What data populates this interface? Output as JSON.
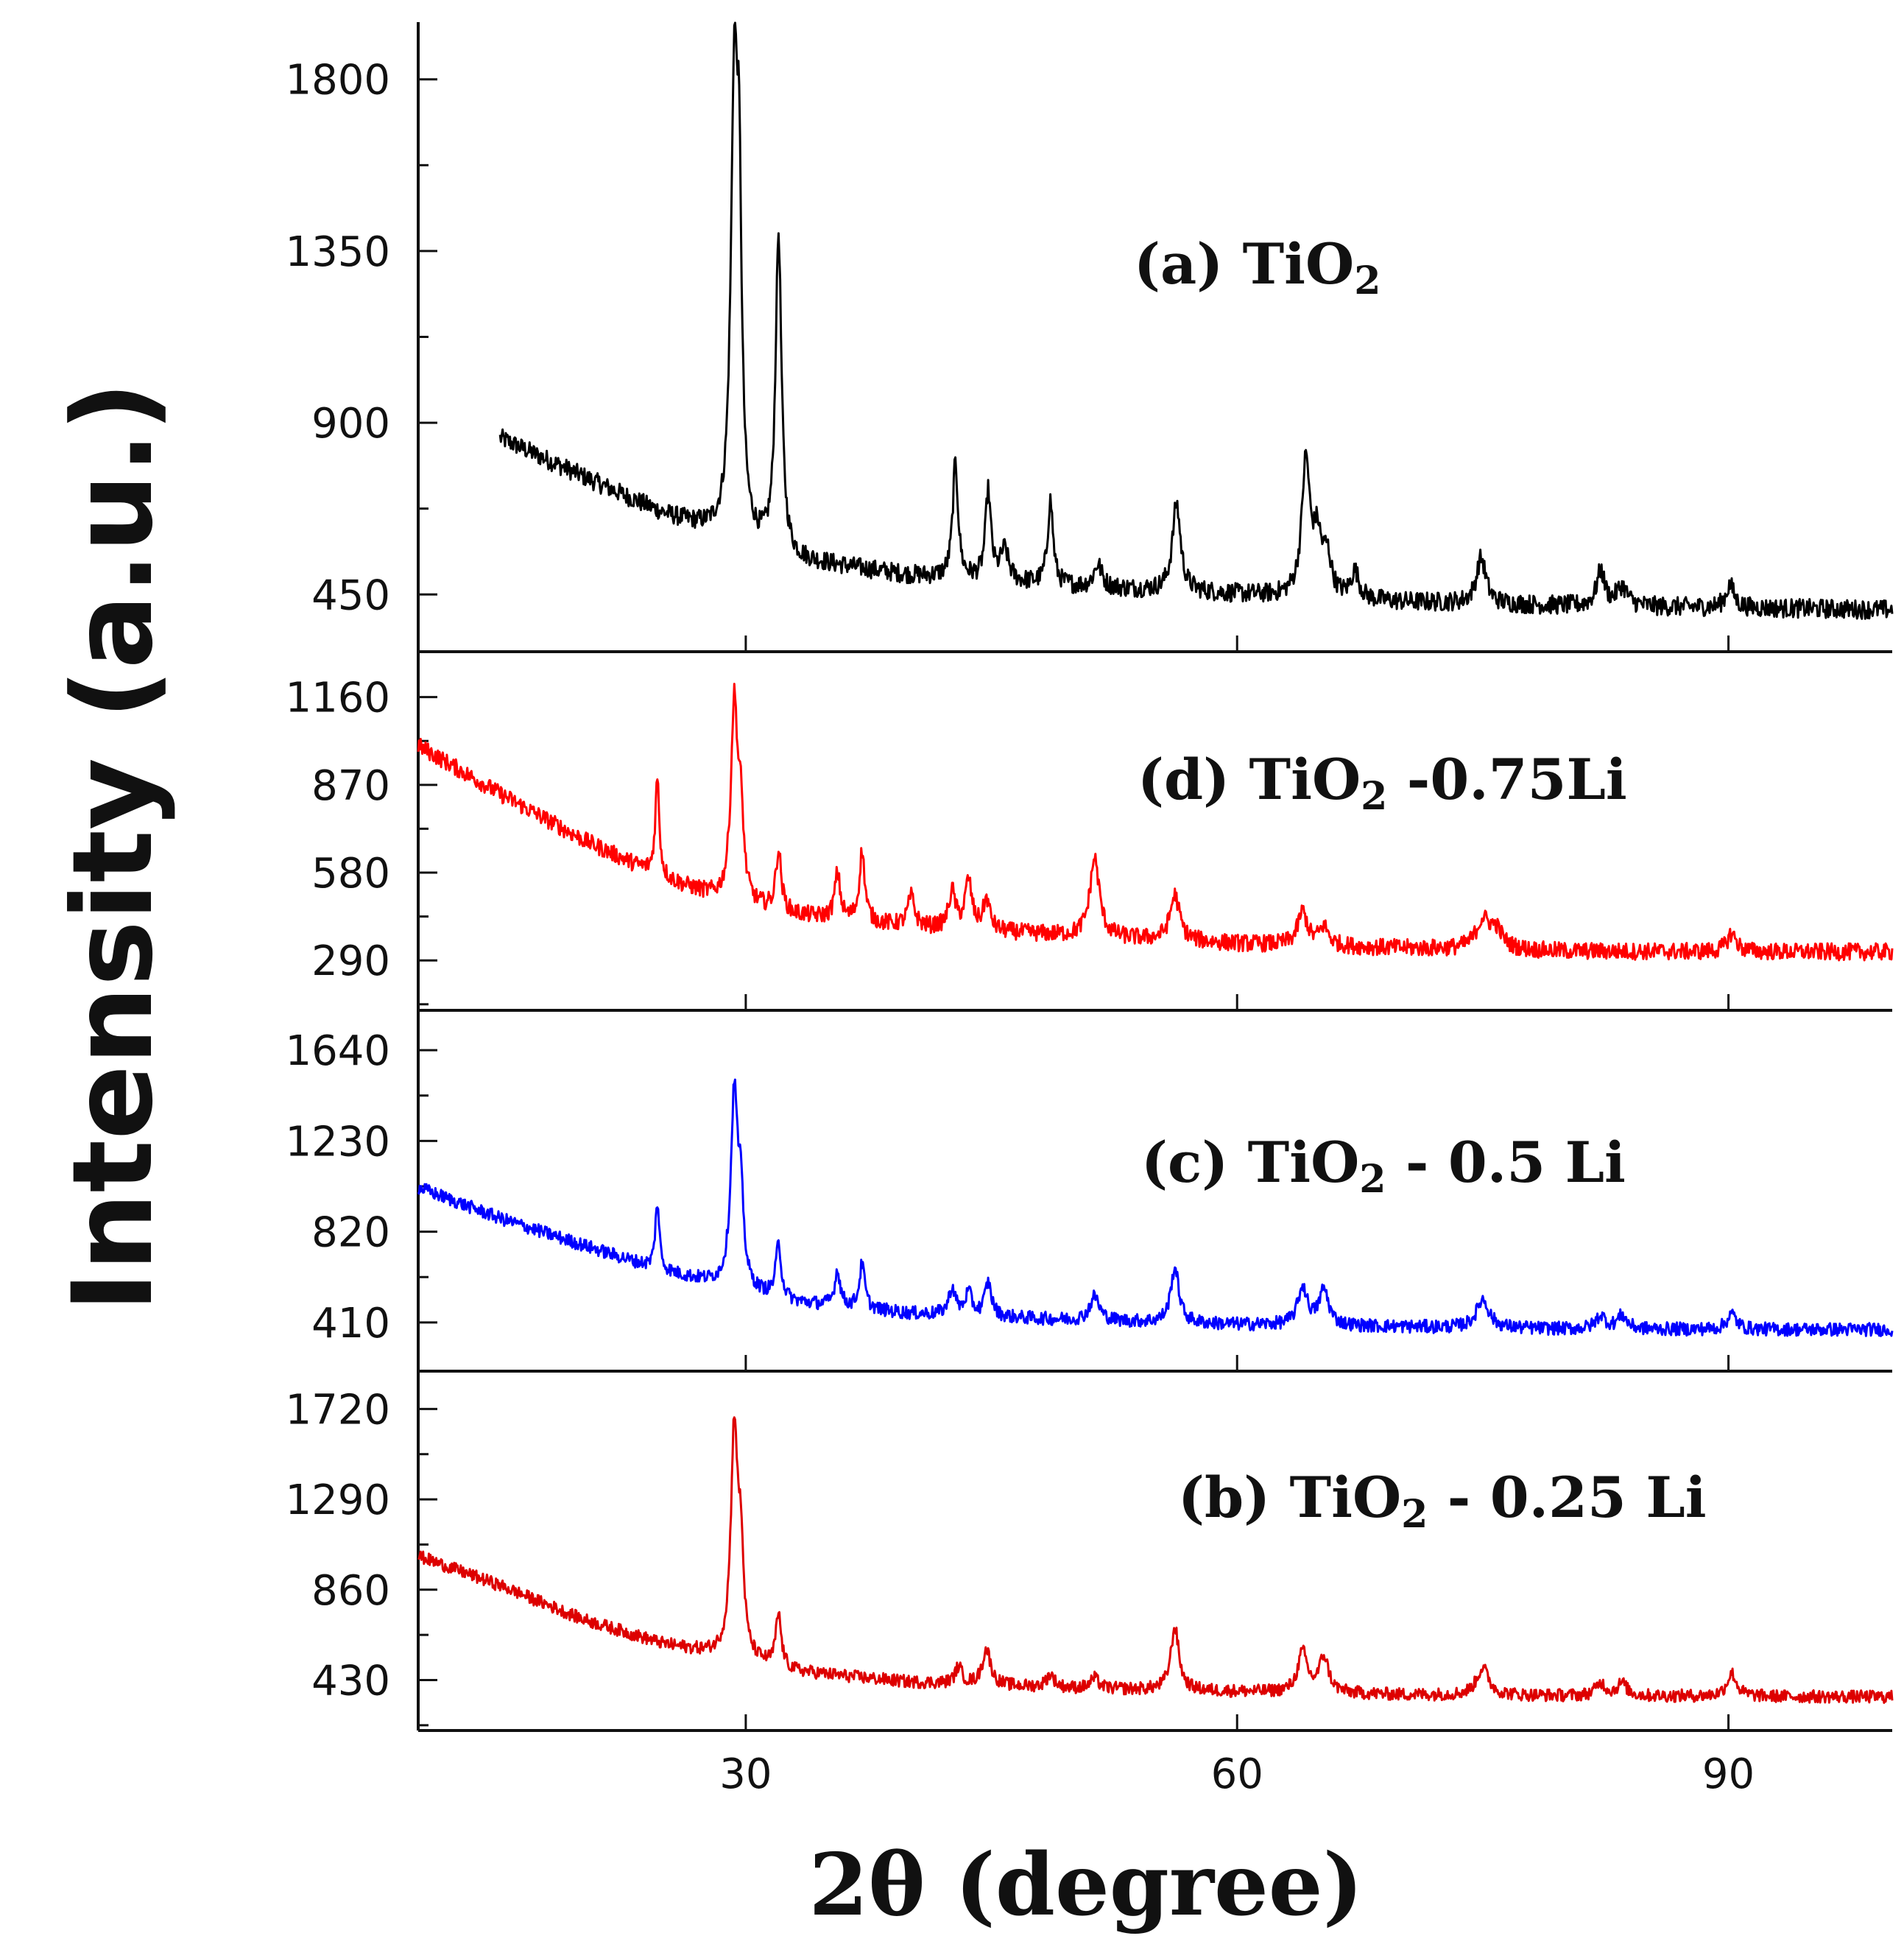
{
  "chart_data": {
    "type": "line",
    "title": "",
    "xlabel": "2θ (degree)",
    "ylabel": "Intensity (a.u.)",
    "xlim": [
      10,
      100
    ],
    "xticks": [
      "30",
      "60",
      "90"
    ],
    "grid": false,
    "panels": [
      {
        "id": "a",
        "label": "(a) TiO",
        "label_sub": "2",
        "label_rest": "",
        "color": "#000000",
        "ylim": [
          300,
          1950
        ],
        "yticks": [
          "1800",
          "1350",
          "900",
          "450"
        ],
        "ytick_values": [
          1800,
          1350,
          900,
          450
        ],
        "x_start": 15,
        "baseline": [
          [
            15,
            860
          ],
          [
            20,
            760
          ],
          [
            25,
            660
          ],
          [
            29,
            600
          ],
          [
            33,
            540
          ],
          [
            40,
            500
          ],
          [
            50,
            470
          ],
          [
            60,
            450
          ],
          [
            70,
            430
          ],
          [
            80,
            420
          ],
          [
            90,
            415
          ],
          [
            100,
            410
          ]
        ],
        "peaks": [
          [
            29.3,
            1150,
            0.25
          ],
          [
            29.6,
            700,
            0.18
          ],
          [
            32.0,
            830,
            0.22
          ],
          [
            42.8,
            300,
            0.2
          ],
          [
            44.8,
            230,
            0.2
          ],
          [
            45.8,
            80,
            0.3
          ],
          [
            48.6,
            220,
            0.2
          ],
          [
            51.5,
            60,
            0.3
          ],
          [
            56.3,
            230,
            0.3
          ],
          [
            64.2,
            350,
            0.3
          ],
          [
            64.9,
            140,
            0.3
          ],
          [
            65.5,
            100,
            0.3
          ],
          [
            67.2,
            70,
            0.3
          ],
          [
            74.9,
            120,
            0.35
          ],
          [
            82.2,
            90,
            0.3
          ],
          [
            83.5,
            50,
            0.4
          ],
          [
            90.1,
            60,
            0.3
          ]
        ],
        "noise": 25
      },
      {
        "id": "d",
        "label": "(d)  TiO",
        "label_sub": "2",
        "label_rest": " -0.75Li",
        "color": "#ff0000",
        "ylim": [
          125,
          1310
        ],
        "yticks": [
          "1160",
          "870",
          "580",
          "290"
        ],
        "ytick_values": [
          1160,
          870,
          580,
          290
        ],
        "x_start": 10,
        "baseline": [
          [
            10,
            1000
          ],
          [
            15,
            840
          ],
          [
            20,
            690
          ],
          [
            25,
            560
          ],
          [
            29,
            480
          ],
          [
            33,
            440
          ],
          [
            40,
            400
          ],
          [
            50,
            370
          ],
          [
            60,
            345
          ],
          [
            70,
            330
          ],
          [
            80,
            320
          ],
          [
            90,
            318
          ],
          [
            100,
            318
          ]
        ],
        "peaks": [
          [
            24.6,
            320,
            0.15
          ],
          [
            29.3,
            650,
            0.25
          ],
          [
            29.7,
            250,
            0.2
          ],
          [
            32.0,
            200,
            0.2
          ],
          [
            35.6,
            150,
            0.2
          ],
          [
            37.1,
            230,
            0.2
          ],
          [
            40.1,
            100,
            0.25
          ],
          [
            42.6,
            120,
            0.25
          ],
          [
            43.6,
            160,
            0.25
          ],
          [
            44.7,
            100,
            0.25
          ],
          [
            51.3,
            260,
            0.35
          ],
          [
            56.2,
            150,
            0.35
          ],
          [
            64.0,
            110,
            0.35
          ],
          [
            65.3,
            60,
            0.35
          ],
          [
            75.0,
            90,
            0.5
          ],
          [
            75.8,
            60,
            0.5
          ],
          [
            90.2,
            60,
            0.35
          ]
        ],
        "noise": 28
      },
      {
        "id": "c",
        "label": "(c) TiO",
        "label_sub": "2",
        "label_rest": " - 0.5 Li",
        "color": "#0000ff",
        "ylim": [
          190,
          1820
        ],
        "yticks": [
          "1640",
          "1230",
          "820",
          "410"
        ],
        "ytick_values": [
          1640,
          1230,
          820,
          410
        ],
        "x_start": 10,
        "baseline": [
          [
            10,
            1020
          ],
          [
            15,
            880
          ],
          [
            20,
            760
          ],
          [
            25,
            640
          ],
          [
            29,
            570
          ],
          [
            33,
            500
          ],
          [
            40,
            450
          ],
          [
            50,
            420
          ],
          [
            60,
            400
          ],
          [
            70,
            390
          ],
          [
            80,
            380
          ],
          [
            90,
            378
          ],
          [
            100,
            378
          ]
        ],
        "peaks": [
          [
            24.6,
            300,
            0.15
          ],
          [
            29.3,
            870,
            0.25
          ],
          [
            29.7,
            350,
            0.2
          ],
          [
            32.0,
            240,
            0.2
          ],
          [
            35.6,
            160,
            0.2
          ],
          [
            37.1,
            200,
            0.2
          ],
          [
            42.6,
            120,
            0.25
          ],
          [
            43.6,
            100,
            0.25
          ],
          [
            44.8,
            150,
            0.25
          ],
          [
            51.3,
            110,
            0.35
          ],
          [
            56.2,
            250,
            0.3
          ],
          [
            64.0,
            170,
            0.35
          ],
          [
            65.3,
            160,
            0.35
          ],
          [
            75.0,
            130,
            0.45
          ],
          [
            82.2,
            60,
            0.35
          ],
          [
            83.5,
            60,
            0.35
          ],
          [
            90.2,
            70,
            0.35
          ]
        ],
        "noise": 30
      },
      {
        "id": "b",
        "label": "(b) TiO",
        "label_sub": "2",
        "label_rest": " - 0.25 Li",
        "color": "#dd0000",
        "ylim": [
          190,
          1900
        ],
        "yticks": [
          "1720",
          "1290",
          "860",
          "430"
        ],
        "ytick_values": [
          1720,
          1290,
          860,
          430
        ],
        "x_start": 10,
        "baseline": [
          [
            10,
            1020
          ],
          [
            15,
            880
          ],
          [
            20,
            720
          ],
          [
            25,
            600
          ],
          [
            29,
            540
          ],
          [
            33,
            470
          ],
          [
            40,
            420
          ],
          [
            50,
            390
          ],
          [
            60,
            375
          ],
          [
            70,
            360
          ],
          [
            80,
            355
          ],
          [
            90,
            352
          ],
          [
            100,
            350
          ]
        ],
        "peaks": [
          [
            29.3,
            1080,
            0.25
          ],
          [
            29.7,
            450,
            0.2
          ],
          [
            32.0,
            250,
            0.2
          ],
          [
            43.0,
            80,
            0.25
          ],
          [
            44.7,
            170,
            0.3
          ],
          [
            48.6,
            60,
            0.3
          ],
          [
            51.3,
            50,
            0.3
          ],
          [
            56.2,
            300,
            0.3
          ],
          [
            64.0,
            190,
            0.35
          ],
          [
            65.3,
            170,
            0.35
          ],
          [
            75.0,
            130,
            0.45
          ],
          [
            82.2,
            60,
            0.35
          ],
          [
            83.5,
            60,
            0.35
          ],
          [
            90.2,
            110,
            0.35
          ]
        ],
        "noise": 30
      }
    ]
  }
}
